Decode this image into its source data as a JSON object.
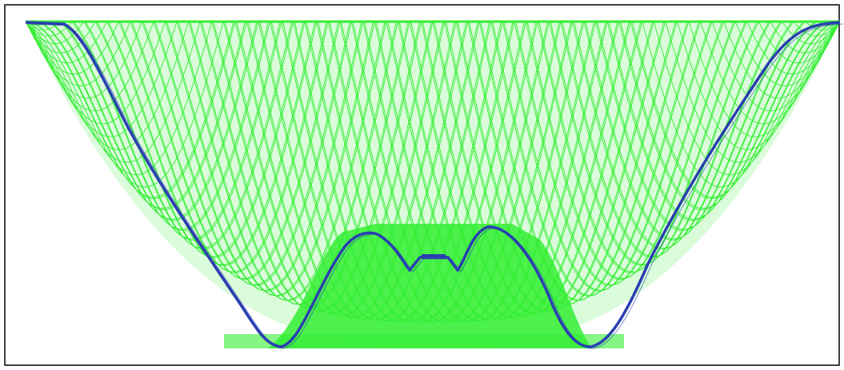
{
  "figure": {
    "kind": "surface-mesh-profile",
    "colors": {
      "background": "#ffffff",
      "frame": "#000000",
      "mesh": "#33ee33",
      "profile": "#2a3fb0"
    }
  }
}
